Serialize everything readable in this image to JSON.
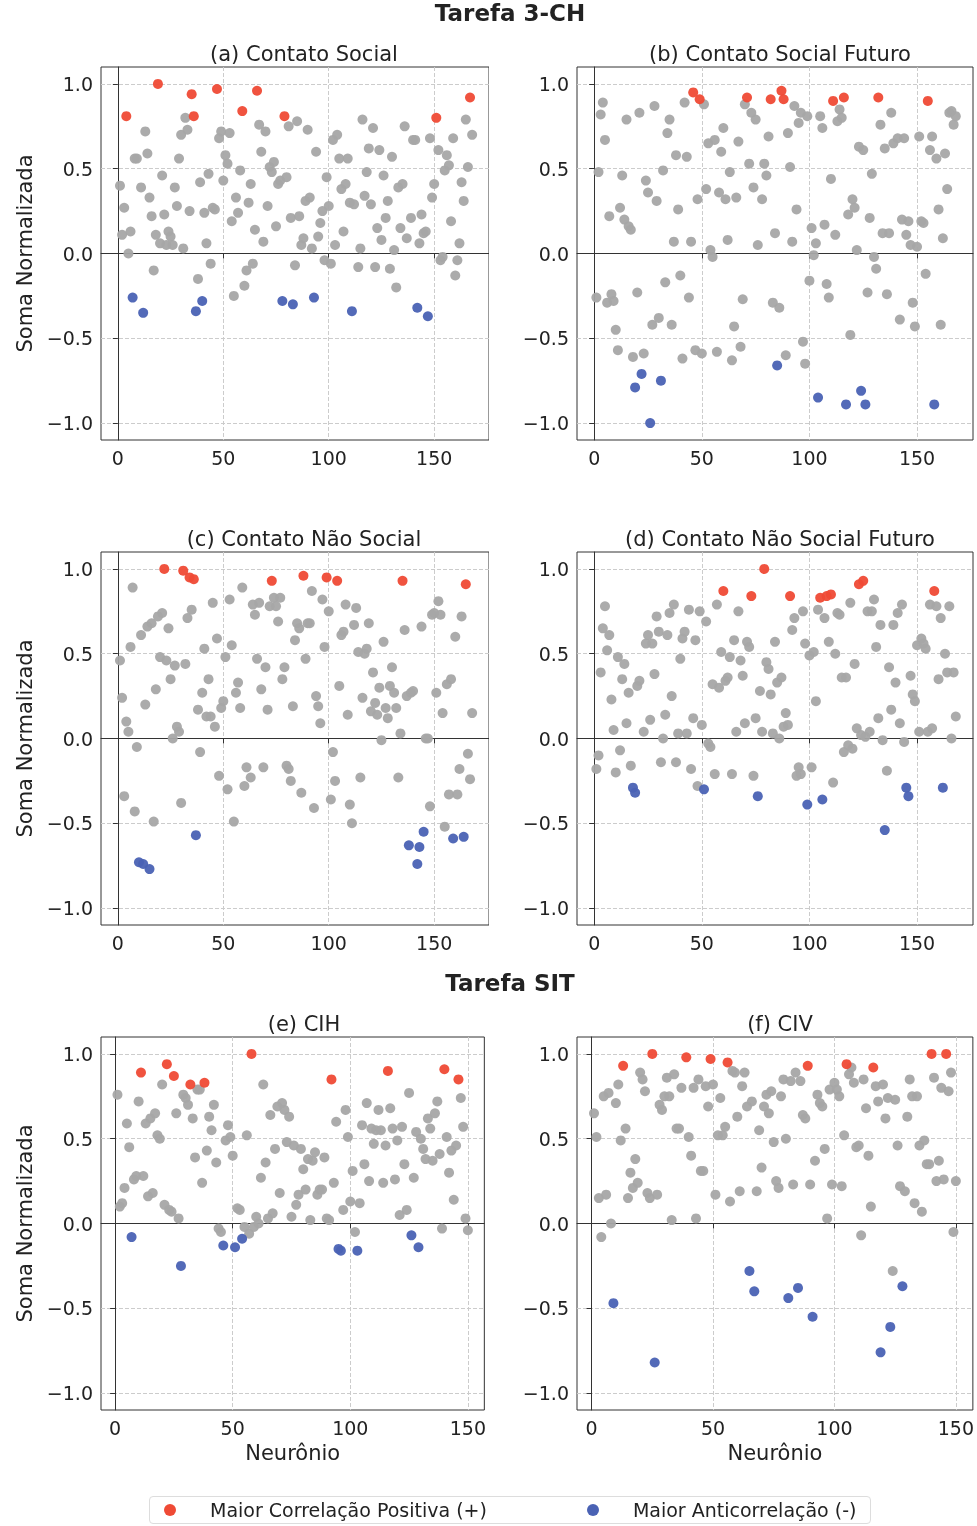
{
  "chart_data": [
    {
      "type": "scatter",
      "title": "(a) Contato Social",
      "ylabel": "Soma Normalizada",
      "annotations": [
        "Tarefa 3-CH"
      ],
      "xlim": [
        -8,
        176
      ],
      "ylim": [
        -1.1,
        1.1
      ],
      "xticks": [
        0,
        50,
        100,
        150
      ],
      "yticks": [
        {
          "value": -1,
          "label": "−1.0"
        },
        {
          "value": -0.5,
          "label": "−0.5"
        },
        {
          "value": 0,
          "label": "0.0"
        },
        {
          "value": 0.5,
          "label": "0.5"
        },
        {
          "value": 1,
          "label": "1.0"
        }
      ],
      "grid": true,
      "marker": "circle",
      "series": [
        {
          "color": "#a6a6a6",
          "x": [
            1,
            3,
            2,
            6,
            5,
            8,
            9,
            11,
            13,
            14,
            15,
            16,
            17,
            18,
            20,
            21,
            22,
            23,
            24,
            25,
            26,
            27,
            28,
            29,
            30,
            31,
            32,
            33,
            34,
            38,
            39,
            41,
            42,
            43,
            44,
            45,
            46,
            48,
            49,
            50,
            51,
            52,
            53,
            54,
            55,
            56,
            57,
            58,
            60,
            61,
            62,
            63,
            64,
            65,
            67,
            68,
            69,
            70,
            71,
            72,
            73,
            74,
            75,
            76,
            77,
            80,
            81,
            82,
            84,
            85,
            86,
            87,
            88,
            89,
            90,
            91,
            92,
            94,
            95,
            96,
            97,
            98,
            99,
            100,
            101,
            102,
            103,
            104,
            105,
            106,
            107,
            108,
            109,
            110,
            112,
            114,
            115,
            116,
            117,
            118,
            119,
            120,
            121,
            122,
            123,
            124,
            125,
            126,
            127,
            128,
            129,
            130,
            131,
            132,
            133,
            135,
            134,
            136,
            137,
            139,
            140,
            141,
            143,
            144,
            145,
            146,
            148,
            149,
            150,
            152,
            153,
            154,
            155,
            156,
            157,
            158,
            159,
            160,
            161,
            162,
            163,
            164,
            165,
            166,
            168
          ],
          "values": [
            0.4,
            0.27,
            0.11,
            0.13,
            0.0,
            0.56,
            0.56,
            0.39,
            0.72,
            0.59,
            0.33,
            0.22,
            -0.1,
            0.11,
            0.06,
            0.46,
            0.23,
            0.05,
            0.13,
            0.1,
            0.05,
            0.39,
            0.28,
            0.56,
            0.7,
            0.03,
            0.8,
            0.73,
            0.25,
            -0.15,
            0.42,
            0.24,
            0.06,
            0.47,
            -0.06,
            0.27,
            0.26,
            0.68,
            0.72,
            0.43,
            0.58,
            0.53,
            0.71,
            0.19,
            -0.25,
            0.33,
            0.24,
            0.49,
            -0.19,
            -0.1,
            0.3,
            0.41,
            -0.06,
            0.14,
            0.76,
            0.6,
            0.07,
            0.72,
            0.28,
            0.51,
            0.48,
            0.54,
            0.16,
            0.41,
            0.43,
            0.45,
            0.75,
            0.21,
            -0.07,
            0.78,
            0.22,
            0.05,
            0.09,
            0.31,
            0.73,
            0.33,
            0.03,
            0.6,
            0.1,
            0.18,
            0.25,
            -0.04,
            0.45,
            0.28,
            -0.06,
            0.67,
            0.05,
            0.7,
            0.56,
            0.38,
            0.13,
            0.41,
            0.56,
            0.3,
            0.29,
            -0.08,
            0.03,
            0.79,
            0.34,
            0.48,
            0.62,
            0.29,
            0.74,
            -0.08,
            0.15,
            0.61,
            0.08,
            0.46,
            0.21,
            0.31,
            -0.09,
            0.57,
            0.02,
            -0.2,
            0.39,
            0.41,
            0.15,
            0.75,
            0.09,
            0.21,
            0.67,
            0.67,
            0.06,
            0.23,
            0.12,
            0.13,
            0.68,
            0.33,
            0.41,
            0.61,
            -0.04,
            -0.02,
            0.49,
            0.58,
            0.52,
            0.19,
            0.68,
            -0.13,
            -0.04,
            0.06,
            0.42,
            0.31,
            0.79,
            0.51,
            0.7
          ]
        },
        {
          "color": "#ef4a35",
          "x": [
            4,
            19,
            35,
            36,
            47,
            59,
            66,
            79,
            151,
            167
          ],
          "values": [
            0.81,
            1.0,
            0.94,
            0.81,
            0.97,
            0.84,
            0.96,
            0.81,
            0.8,
            0.92
          ]
        },
        {
          "color": "#4a62b4",
          "x": [
            7,
            12,
            37,
            40,
            78,
            83,
            93,
            111,
            142,
            147
          ],
          "values": [
            -0.26,
            -0.35,
            -0.34,
            -0.28,
            -0.28,
            -0.3,
            -0.26,
            -0.34,
            -0.32,
            -0.37
          ]
        }
      ]
    },
    {
      "type": "scatter",
      "title": "(b) Contato Social Futuro",
      "xlim": [
        -8,
        176
      ],
      "ylim": [
        -1.1,
        1.1
      ],
      "xticks": [
        0,
        50,
        100,
        150
      ],
      "yticks": [
        {
          "value": -1,
          "label": "−1.0"
        },
        {
          "value": -0.5,
          "label": "−0.5"
        },
        {
          "value": 0,
          "label": "0.0"
        },
        {
          "value": 0.5,
          "label": "0.5"
        },
        {
          "value": 1,
          "label": "1.0"
        }
      ],
      "grid": true,
      "marker": "circle",
      "series": [
        {
          "color": "#a6a6a6",
          "x": [
            1,
            2,
            3,
            4,
            5,
            6,
            7,
            8,
            9,
            10,
            11,
            12,
            13,
            14,
            15,
            16,
            17,
            18,
            20,
            21,
            23,
            24,
            25,
            27,
            28,
            29,
            30,
            32,
            33,
            34,
            35,
            36,
            37,
            38,
            39,
            40,
            41,
            42,
            43,
            44,
            45,
            47,
            48,
            50,
            51,
            52,
            53,
            54,
            55,
            56,
            57,
            58,
            59,
            60,
            61,
            62,
            63,
            64,
            65,
            66,
            67,
            68,
            69,
            70,
            72,
            73,
            74,
            75,
            76,
            78,
            79,
            80,
            81,
            83,
            84,
            86,
            89,
            90,
            91,
            92,
            93,
            94,
            95,
            96,
            97,
            98,
            99,
            100,
            101,
            102,
            103,
            105,
            106,
            107,
            108,
            109,
            110,
            112,
            113,
            114,
            115,
            118,
            119,
            120,
            121,
            122,
            123,
            125,
            127,
            128,
            129,
            130,
            131,
            133,
            134,
            135,
            136,
            137,
            138,
            139,
            141,
            142,
            143,
            144,
            145,
            146,
            147,
            148,
            149,
            150,
            151,
            152,
            153,
            154,
            156,
            157,
            159,
            160,
            161,
            162,
            163,
            164,
            165,
            166,
            167,
            168
          ],
          "values": [
            -0.26,
            0.48,
            0.82,
            0.89,
            0.67,
            -0.29,
            0.22,
            -0.24,
            -0.28,
            -0.45,
            -0.57,
            0.27,
            0.46,
            0.2,
            0.79,
            0.16,
            0.14,
            -0.61,
            -0.23,
            0.83,
            -0.59,
            0.43,
            0.36,
            -0.42,
            0.87,
            0.31,
            -0.38,
            0.49,
            -0.17,
            0.71,
            0.79,
            -0.42,
            0.07,
            0.58,
            0.26,
            -0.13,
            -0.62,
            0.89,
            0.57,
            -0.26,
            0.07,
            -0.57,
            0.32,
            -0.59,
            0.88,
            0.38,
            0.65,
            0.02,
            -0.02,
            0.67,
            -0.58,
            0.36,
            0.6,
            0.74,
            0.32,
            0.08,
            0.48,
            -0.63,
            -0.43,
            0.33,
            0.66,
            -0.55,
            -0.27,
            0.88,
            0.53,
            0.83,
            0.39,
            0.79,
            0.05,
            0.32,
            0.53,
            0.46,
            0.69,
            -0.29,
            0.12,
            -0.32,
            -0.6,
            0.71,
            0.51,
            0.07,
            0.87,
            0.26,
            0.77,
            0.83,
            -0.52,
            -0.65,
            0.81,
            -0.16,
            0.15,
            -0.01,
            0.06,
            0.81,
            0.74,
            0.17,
            -0.18,
            -0.26,
            0.44,
            0.11,
            0.78,
            0.85,
            0.8,
            0.23,
            -0.48,
            0.32,
            0.27,
            0.02,
            0.63,
            0.61,
            -0.23,
            0.21,
            0.47,
            -0.02,
            -0.09,
            0.76,
            0.12,
            0.62,
            -0.24,
            0.12,
            0.83,
            0.65,
            0.68,
            -0.39,
            0.2,
            0.68,
            0.11,
            0.19,
            0.05,
            -0.29,
            -0.43,
            0.04,
            0.69,
            0.19,
            0.18,
            -0.12,
            0.61,
            0.69,
            0.56,
            0.26,
            -0.42,
            0.09,
            0.59,
            0.38,
            0.83,
            0.84,
            0.76,
            0.81
          ]
        },
        {
          "color": "#ef4a35",
          "x": [
            46,
            49,
            71,
            82,
            87,
            88,
            111,
            116,
            132,
            155
          ],
          "values": [
            0.95,
            0.91,
            0.92,
            0.91,
            0.96,
            0.91,
            0.9,
            0.92,
            0.92,
            0.9
          ]
        },
        {
          "color": "#4a62b4",
          "x": [
            19,
            22,
            26,
            31,
            85,
            104,
            117,
            124,
            126,
            158
          ],
          "values": [
            -0.79,
            -0.71,
            -1.0,
            -0.75,
            -0.66,
            -0.85,
            -0.89,
            -0.81,
            -0.89,
            -0.89
          ]
        }
      ]
    },
    {
      "type": "scatter",
      "title": "(c) Contato Não Social",
      "ylabel": "Soma Normalizada",
      "xlim": [
        -8,
        176
      ],
      "ylim": [
        -1.1,
        1.1
      ],
      "xticks": [
        0,
        50,
        100,
        150
      ],
      "yticks": [
        {
          "value": -1,
          "label": "−1.0"
        },
        {
          "value": -0.5,
          "label": "−0.5"
        },
        {
          "value": 0,
          "label": "0.0"
        },
        {
          "value": 0.5,
          "label": "0.5"
        },
        {
          "value": 1,
          "label": "1.0"
        }
      ],
      "grid": true,
      "marker": "circle",
      "series": [
        {
          "color": "#a6a6a6",
          "x": [
            1,
            2,
            3,
            4,
            5,
            6,
            7,
            8,
            9,
            11,
            13,
            14,
            16,
            17,
            18,
            19,
            20,
            21,
            23,
            24,
            25,
            26,
            27,
            28,
            29,
            30,
            32,
            33,
            35,
            38,
            39,
            40,
            41,
            42,
            43,
            44,
            45,
            46,
            47,
            48,
            49,
            50,
            51,
            52,
            53,
            54,
            55,
            56,
            57,
            58,
            59,
            60,
            61,
            63,
            64,
            65,
            66,
            67,
            68,
            69,
            70,
            71,
            72,
            74,
            75,
            76,
            77,
            78,
            79,
            80,
            81,
            82,
            83,
            84,
            85,
            86,
            87,
            89,
            90,
            91,
            92,
            93,
            94,
            95,
            96,
            97,
            98,
            100,
            101,
            102,
            103,
            105,
            106,
            107,
            108,
            109,
            110,
            111,
            112,
            113,
            114,
            115,
            116,
            117,
            118,
            119,
            120,
            121,
            122,
            123,
            124,
            125,
            126,
            127,
            128,
            129,
            130,
            131,
            132,
            133,
            134,
            136,
            137,
            139,
            140,
            144,
            146,
            147,
            148,
            149,
            150,
            151,
            152,
            153,
            154,
            155,
            156,
            157,
            158,
            160,
            161,
            162,
            163,
            166,
            167,
            168
          ],
          "values": [
            0.46,
            0.24,
            -0.34,
            0.1,
            0.04,
            0.54,
            0.89,
            -0.43,
            -0.05,
            0.61,
            0.2,
            0.66,
            0.68,
            -0.49,
            0.29,
            0.72,
            0.48,
            0.74,
            0.46,
            0.65,
            0.35,
            0.0,
            0.43,
            0.07,
            0.04,
            -0.38,
            0.44,
            0.71,
            0.76,
            0.17,
            -0.08,
            0.27,
            0.53,
            0.13,
            0.35,
            0.13,
            0.8,
            0.07,
            0.59,
            -0.22,
            0.18,
            0.22,
            0.48,
            -0.3,
            0.82,
            0.55,
            -0.49,
            0.27,
            0.33,
            0.18,
            0.89,
            -0.28,
            -0.17,
            -0.23,
            0.79,
            0.73,
            0.47,
            0.8,
            0.29,
            -0.17,
            0.42,
            0.17,
            0.78,
            0.83,
            0.78,
            0.69,
            0.83,
            0.35,
            0.42,
            -0.16,
            -0.18,
            -0.25,
            0.19,
            0.58,
            0.68,
            0.65,
            -0.32,
            0.47,
            0.68,
            0.68,
            0.87,
            -0.41,
            0.25,
            0.19,
            0.09,
            0.82,
            0.54,
            0.75,
            -0.36,
            -0.08,
            -0.25,
            0.31,
            0.61,
            0.63,
            0.79,
            0.14,
            -0.39,
            -0.5,
            0.67,
            0.77,
            0.51,
            -0.23,
            0.24,
            0.5,
            0.53,
            0.68,
            0.16,
            0.39,
            0.21,
            0.14,
            0.3,
            -0.01,
            0.57,
            0.18,
            0.12,
            0.31,
            0.42,
            0.27,
            0.18,
            -0.23,
            0.03,
            0.64,
            0.25,
            0.27,
            0.28,
            0.66,
            0.0,
            0.0,
            -0.4,
            0.73,
            0.74,
            0.27,
            0.81,
            0.73,
            0.15,
            -0.52,
            0.32,
            -0.33,
            0.35,
            0.6,
            -0.33,
            -0.18,
            0.72,
            -0.09,
            -0.24,
            0.15
          ]
        },
        {
          "color": "#ef4a35",
          "x": [
            22,
            31,
            34,
            36,
            73,
            88,
            99,
            104,
            135,
            165
          ],
          "values": [
            1.0,
            0.99,
            0.95,
            0.94,
            0.93,
            0.96,
            0.95,
            0.93,
            0.93,
            0.91
          ]
        },
        {
          "color": "#4a62b4",
          "x": [
            10,
            12,
            15,
            37,
            138,
            143,
            142,
            145,
            159,
            164
          ],
          "values": [
            -0.73,
            -0.74,
            -0.77,
            -0.57,
            -0.63,
            -0.64,
            -0.74,
            -0.55,
            -0.59,
            -0.58
          ]
        }
      ]
    },
    {
      "type": "scatter",
      "title": "(d) Contato Não Social Futuro",
      "xlim": [
        -8,
        176
      ],
      "ylim": [
        -1.1,
        1.1
      ],
      "xticks": [
        0,
        50,
        100,
        150
      ],
      "yticks": [
        {
          "value": -1,
          "label": "−1.0"
        },
        {
          "value": -0.5,
          "label": "−0.5"
        },
        {
          "value": 0,
          "label": "0.0"
        },
        {
          "value": 0.5,
          "label": "0.5"
        },
        {
          "value": 1,
          "label": "1.0"
        }
      ],
      "grid": true,
      "marker": "circle",
      "series": [
        {
          "color": "#a6a6a6",
          "x": [
            1,
            2,
            3,
            4,
            5,
            6,
            7,
            8,
            9,
            10,
            11,
            12,
            13,
            14,
            15,
            16,
            17,
            20,
            21,
            23,
            24,
            25,
            26,
            27,
            28,
            29,
            30,
            31,
            32,
            33,
            34,
            35,
            36,
            37,
            38,
            39,
            40,
            41,
            42,
            43,
            44,
            45,
            46,
            47,
            48,
            49,
            50,
            52,
            53,
            54,
            55,
            56,
            57,
            58,
            59,
            61,
            62,
            63,
            64,
            65,
            66,
            67,
            68,
            69,
            70,
            71,
            72,
            74,
            75,
            77,
            78,
            80,
            81,
            82,
            83,
            84,
            85,
            86,
            87,
            88,
            89,
            90,
            92,
            93,
            94,
            95,
            96,
            97,
            98,
            100,
            101,
            102,
            103,
            104,
            107,
            109,
            111,
            112,
            113,
            114,
            115,
            116,
            117,
            118,
            119,
            120,
            121,
            122,
            124,
            126,
            127,
            128,
            129,
            130,
            131,
            132,
            133,
            134,
            136,
            137,
            138,
            139,
            140,
            141,
            142,
            143,
            144,
            147,
            148,
            149,
            150,
            151,
            152,
            153,
            154,
            155,
            156,
            157,
            159,
            160,
            161,
            163,
            164,
            165,
            166,
            167,
            168
          ],
          "values": [
            -0.18,
            -0.1,
            0.39,
            0.65,
            0.78,
            0.52,
            0.61,
            0.23,
            0.05,
            -0.2,
            0.48,
            -0.07,
            0.35,
            0.44,
            0.09,
            0.27,
            -0.16,
            0.31,
            0.34,
            0.04,
            0.56,
            0.61,
            0.11,
            0.56,
            0.38,
            0.72,
            0.63,
            -0.14,
            0.0,
            0.14,
            0.61,
            0.74,
            0.25,
            0.79,
            -0.14,
            0.03,
            0.47,
            0.59,
            0.63,
            0.03,
            0.76,
            -0.18,
            0.12,
            0.58,
            -0.28,
            0.75,
            0.08,
            0.69,
            -0.03,
            -0.05,
            0.32,
            -0.21,
            0.79,
            0.3,
            0.51,
            0.34,
            0.36,
            0.48,
            -0.21,
            0.58,
            0.04,
            0.75,
            0.46,
            0.37,
            0.09,
            0.57,
            0.54,
            -0.22,
            0.12,
            0.28,
            0.04,
            0.45,
            0.41,
            0.26,
            0.03,
            0.57,
            0.33,
            0.0,
            0.36,
            0.07,
            0.15,
            0.08,
            0.64,
            0.71,
            -0.22,
            -0.17,
            -0.21,
            0.75,
            0.56,
            0.49,
            -0.17,
            0.51,
            0.22,
            0.76,
            0.71,
            0.57,
            -0.26,
            0.5,
            0.74,
            0.73,
            0.36,
            -0.08,
            0.36,
            -0.04,
            0.8,
            -0.06,
            0.44,
            0.06,
            0.02,
            0.01,
            0.75,
            0.04,
            0.75,
            0.82,
            0.54,
            0.12,
            0.67,
            -0.01,
            -0.19,
            0.42,
            0.17,
            0.67,
            0.33,
            0.74,
            0.09,
            0.79,
            -0.02,
            0.37,
            0.26,
            0.22,
            0.55,
            0.04,
            0.59,
            0.56,
            0.53,
            0.04,
            0.79,
            0.06,
            0.78,
            0.35,
            0.71,
            0.5,
            0.39,
            0.78,
            0.0,
            0.39,
            0.13
          ]
        },
        {
          "color": "#ef4a35",
          "x": [
            60,
            73,
            79,
            91,
            105,
            108,
            110,
            123,
            125,
            158
          ],
          "values": [
            0.87,
            0.84,
            1.0,
            0.84,
            0.83,
            0.84,
            0.85,
            0.91,
            0.93,
            0.87
          ]
        },
        {
          "color": "#4a62b4",
          "x": [
            18,
            19,
            51,
            76,
            99,
            106,
            135,
            145,
            146,
            162
          ],
          "values": [
            -0.29,
            -0.32,
            -0.3,
            -0.34,
            -0.39,
            -0.36,
            -0.54,
            -0.29,
            -0.34,
            -0.29
          ]
        }
      ]
    },
    {
      "type": "scatter",
      "title": "(e) CIH",
      "xlabel": "Neurônio",
      "ylabel": "Soma Normalizada",
      "annotations": [
        "Tarefa SIT"
      ],
      "xlim": [
        -6,
        157
      ],
      "ylim": [
        -1.1,
        1.1
      ],
      "xticks": [
        0,
        50,
        100,
        150
      ],
      "yticks": [
        {
          "value": -1,
          "label": "−1.0"
        },
        {
          "value": -0.5,
          "label": "−0.5"
        },
        {
          "value": 0,
          "label": "0.0"
        },
        {
          "value": 0.5,
          "label": "0.5"
        },
        {
          "value": 1,
          "label": "1.0"
        }
      ],
      "grid": true,
      "marker": "circle",
      "series": [
        {
          "color": "#a6a6a6",
          "x": [
            1,
            2,
            3,
            4,
            5,
            6,
            8,
            9,
            10,
            12,
            13,
            14,
            15,
            16,
            17,
            18,
            19,
            20,
            21,
            23,
            24,
            26,
            27,
            29,
            30,
            31,
            33,
            34,
            35,
            36,
            37,
            39,
            40,
            41,
            42,
            43,
            44,
            45,
            47,
            48,
            49,
            50,
            52,
            53,
            55,
            56,
            57,
            59,
            60,
            61,
            62,
            63,
            64,
            65,
            66,
            67,
            68,
            69,
            70,
            71,
            72,
            73,
            74,
            75,
            76,
            77,
            78,
            79,
            80,
            81,
            82,
            83,
            84,
            85,
            86,
            87,
            88,
            89,
            90,
            91,
            93,
            94,
            97,
            98,
            99,
            100,
            101,
            102,
            104,
            105,
            106,
            107,
            108,
            109,
            110,
            111,
            112,
            113,
            114,
            115,
            117,
            118,
            119,
            120,
            121,
            122,
            123,
            124,
            125,
            127,
            128,
            130,
            131,
            132,
            133,
            134,
            135,
            136,
            137,
            138,
            139,
            141,
            142,
            143,
            144,
            145,
            147,
            148,
            149,
            150
          ],
          "values": [
            0.76,
            0.1,
            0.12,
            0.21,
            0.59,
            0.45,
            0.26,
            0.28,
            0.72,
            0.28,
            0.59,
            0.16,
            0.62,
            0.18,
            0.65,
            0.52,
            0.5,
            0.82,
            0.11,
            0.08,
            0.07,
            0.65,
            0.03,
            0.76,
            0.74,
            0.7,
            0.62,
            0.39,
            0.79,
            0.79,
            0.24,
            0.43,
            0.63,
            0.55,
            0.7,
            0.36,
            -0.03,
            -0.05,
            0.49,
            0.58,
            0.51,
            0.4,
            0.09,
            0.08,
            -0.02,
            0.52,
            -0.06,
            -0.02,
            0.04,
            0.0,
            0.27,
            0.82,
            0.36,
            0.03,
            0.64,
            0.06,
            0.44,
            0.69,
            0.18,
            0.71,
            0.67,
            0.48,
            0.63,
            0.04,
            0.46,
            0.11,
            0.17,
            0.44,
            0.32,
            0.2,
            0.38,
            0.02,
            0.37,
            0.42,
            0.17,
            0.2,
            0.2,
            0.39,
            0.03,
            0.02,
            0.24,
            0.6,
            0.08,
            0.67,
            0.51,
            0.13,
            0.31,
            -0.05,
            0.12,
            0.58,
            0.35,
            0.71,
            0.25,
            0.56,
            0.47,
            0.55,
            0.67,
            0.55,
            0.24,
            0.46,
            0.68,
            0.56,
            0.26,
            0.49,
            0.05,
            0.57,
            0.35,
            0.08,
            0.77,
            0.27,
            0.54,
            0.5,
            0.44,
            0.38,
            0.62,
            0.56,
            0.37,
            0.65,
            0.72,
            0.41,
            -0.03,
            0.51,
            0.3,
            0.43,
            0.14,
            0.46,
            0.74,
            0.57,
            0.03,
            -0.04
          ]
        },
        {
          "color": "#ef4a35",
          "x": [
            11,
            22,
            25,
            32,
            38,
            58,
            92,
            116,
            140,
            146
          ],
          "values": [
            0.89,
            0.94,
            0.87,
            0.82,
            0.83,
            1.0,
            0.85,
            0.9,
            0.91,
            0.85
          ]
        },
        {
          "color": "#4a62b4",
          "x": [
            7,
            28,
            46,
            51,
            54,
            95,
            96,
            103,
            126,
            129
          ],
          "values": [
            -0.08,
            -0.25,
            -0.13,
            -0.14,
            -0.09,
            -0.15,
            -0.16,
            -0.16,
            -0.07,
            -0.14
          ]
        }
      ]
    },
    {
      "type": "scatter",
      "title": "(f) CIV",
      "xlabel": "Neurônio",
      "xlim": [
        -6,
        157
      ],
      "ylim": [
        -1.1,
        1.1
      ],
      "xticks": [
        0,
        50,
        100,
        150
      ],
      "yticks": [
        {
          "value": -1,
          "label": "−1.0"
        },
        {
          "value": -0.5,
          "label": "−0.5"
        },
        {
          "value": 0,
          "label": "0.0"
        },
        {
          "value": 0.5,
          "label": "0.5"
        },
        {
          "value": 1,
          "label": "1.0"
        }
      ],
      "grid": true,
      "marker": "circle",
      "legend": "bottom",
      "series": [
        {
          "color": "#a6a6a6",
          "x": [
            1,
            2,
            3,
            4,
            5,
            6,
            7,
            8,
            10,
            11,
            12,
            14,
            15,
            16,
            17,
            18,
            19,
            20,
            21,
            22,
            23,
            24,
            27,
            28,
            29,
            30,
            31,
            32,
            33,
            34,
            35,
            36,
            37,
            40,
            41,
            42,
            43,
            44,
            45,
            46,
            47,
            48,
            50,
            51,
            52,
            53,
            54,
            55,
            57,
            58,
            59,
            60,
            61,
            62,
            63,
            64,
            66,
            68,
            69,
            70,
            71,
            72,
            73,
            74,
            75,
            76,
            77,
            78,
            79,
            80,
            82,
            83,
            84,
            86,
            87,
            88,
            90,
            92,
            93,
            94,
            95,
            96,
            97,
            98,
            99,
            100,
            101,
            102,
            103,
            104,
            106,
            107,
            108,
            109,
            110,
            111,
            112,
            113,
            114,
            115,
            117,
            118,
            120,
            121,
            122,
            124,
            125,
            126,
            127,
            129,
            130,
            131,
            132,
            133,
            134,
            135,
            136,
            137,
            138,
            139,
            141,
            142,
            143,
            144,
            145,
            147,
            148,
            149,
            150
          ],
          "values": [
            0.65,
            0.51,
            0.15,
            -0.08,
            0.75,
            0.17,
            0.77,
            0.0,
            0.71,
            0.82,
            0.49,
            0.56,
            0.15,
            0.3,
            0.21,
            0.38,
            0.24,
            0.89,
            0.85,
            0.78,
            0.18,
            0.15,
            0.17,
            0.7,
            0.67,
            0.75,
            0.86,
            0.75,
            0.02,
            0.88,
            0.56,
            0.56,
            0.8,
            0.51,
            0.4,
            0.8,
            0.03,
            0.85,
            0.31,
            0.31,
            0.81,
            0.69,
            0.82,
            0.17,
            0.52,
            0.74,
            0.52,
            0.57,
            0.13,
            0.9,
            0.89,
            0.63,
            0.19,
            0.81,
            0.89,
            0.69,
            0.72,
            0.19,
            0.55,
            0.33,
            0.69,
            0.76,
            0.65,
            0.78,
            0.48,
            0.25,
            0.21,
            0.75,
            0.85,
            0.5,
            0.84,
            0.23,
            0.89,
            0.84,
            0.64,
            0.62,
            0.23,
            0.37,
            0.76,
            0.71,
            0.69,
            0.44,
            0.03,
            0.79,
            0.23,
            0.83,
            0.79,
            0.75,
            0.22,
            0.52,
            0.88,
            0.92,
            0.83,
            0.45,
            0.46,
            -0.07,
            0.85,
            0.68,
            0.4,
            0.1,
            0.81,
            0.72,
            0.82,
            0.62,
            0.74,
            -0.28,
            0.73,
            0.46,
            0.22,
            0.19,
            0.63,
            0.85,
            0.75,
            0.12,
            0.75,
            0.46,
            0.07,
            0.49,
            0.35,
            0.35,
            0.86,
            0.25,
            0.37,
            0.8,
            0.26,
            0.78,
            0.89,
            -0.05,
            0.25
          ]
        },
        {
          "name": "Maior Correlação Positiva (+)",
          "color": "#ef4a35",
          "x": [
            13,
            25,
            39,
            49,
            56,
            89,
            105,
            116,
            140,
            146
          ],
          "values": [
            0.93,
            1.0,
            0.98,
            0.97,
            0.95,
            0.93,
            0.94,
            0.92,
            1.0,
            1.0
          ]
        },
        {
          "name": "Maior Anticorrelação (-)",
          "color": "#4a62b4",
          "x": [
            9,
            26,
            65,
            67,
            81,
            85,
            91,
            119,
            123,
            128
          ],
          "values": [
            -0.47,
            -0.82,
            -0.28,
            -0.4,
            -0.44,
            -0.38,
            -0.55,
            -0.76,
            -0.61,
            -0.37
          ]
        }
      ]
    }
  ]
}
